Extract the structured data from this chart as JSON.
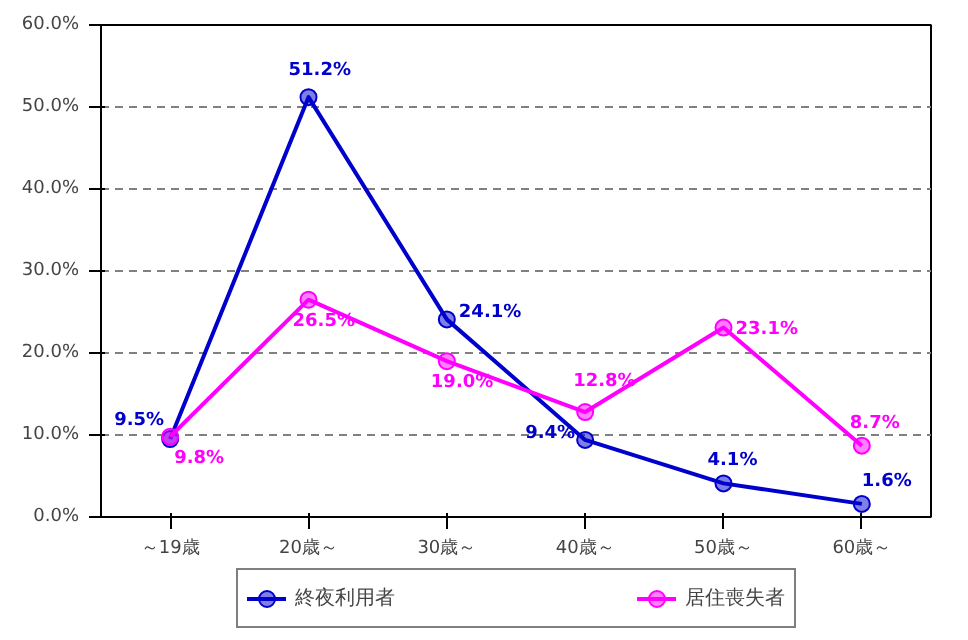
{
  "chart_data": {
    "type": "line",
    "categories": [
      "～19歳",
      "20歳～",
      "30歳～",
      "40歳～",
      "50歳～",
      "60歳～"
    ],
    "series": [
      {
        "name": "終夜利用者",
        "color": "#0000cc",
        "values": [
          9.5,
          51.2,
          24.1,
          9.4,
          4.1,
          1.6
        ],
        "value_labels": [
          "9.5%",
          "51.2%",
          "24.1%",
          "9.4%",
          "4.1%",
          "1.6%"
        ]
      },
      {
        "name": "居住喪失者",
        "color": "#ff00ff",
        "values": [
          9.8,
          26.5,
          19.0,
          12.8,
          23.1,
          8.7
        ],
        "value_labels": [
          "9.8%",
          "26.5%",
          "19.0%",
          "12.8%",
          "23.1%",
          "8.7%"
        ]
      }
    ],
    "ylim": [
      0,
      60
    ],
    "yticks": [
      {
        "value": 0,
        "label": "0.0%"
      },
      {
        "value": 10,
        "label": "10.0%"
      },
      {
        "value": 20,
        "label": "20.0%"
      },
      {
        "value": 30,
        "label": "30.0%"
      },
      {
        "value": 40,
        "label": "40.0%"
      },
      {
        "value": 50,
        "label": "50.0%"
      },
      {
        "value": 60,
        "label": "60.0%"
      }
    ],
    "grid": "y",
    "legend": "bottom",
    "marker": "circle",
    "line_style": "solid"
  }
}
